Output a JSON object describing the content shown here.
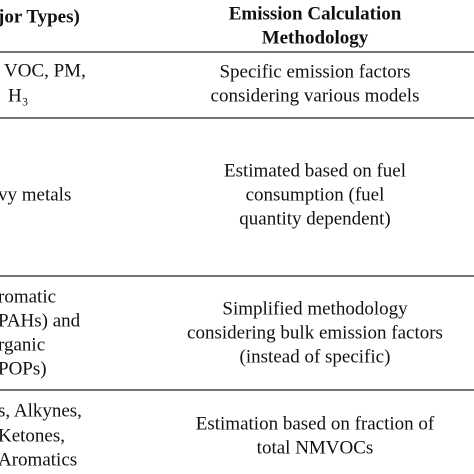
{
  "table": {
    "header": [
      "jor Types)",
      [
        "Emission Calculation",
        "Methodology"
      ]
    ],
    "rows": [
      [
        [
          "VOC, PM,",
          "H₃"
        ],
        [
          "Specific emission factors",
          "considering various models"
        ]
      ],
      [
        [
          "vy metals"
        ],
        [
          "Estimated based on fuel",
          "consumption (fuel",
          "quantity dependent)"
        ]
      ],
      [
        [
          "romatic",
          "PAHs) and",
          "rganic",
          "POPs)"
        ],
        [
          "Simplified methodology",
          "considering bulk emission factors",
          "(instead of specific)"
        ]
      ],
      [
        [
          "s, Alkynes,",
          "Ketones,",
          "Aromatics"
        ],
        [
          "Estimation based on fraction of",
          "total NMVOCs"
        ]
      ]
    ]
  }
}
